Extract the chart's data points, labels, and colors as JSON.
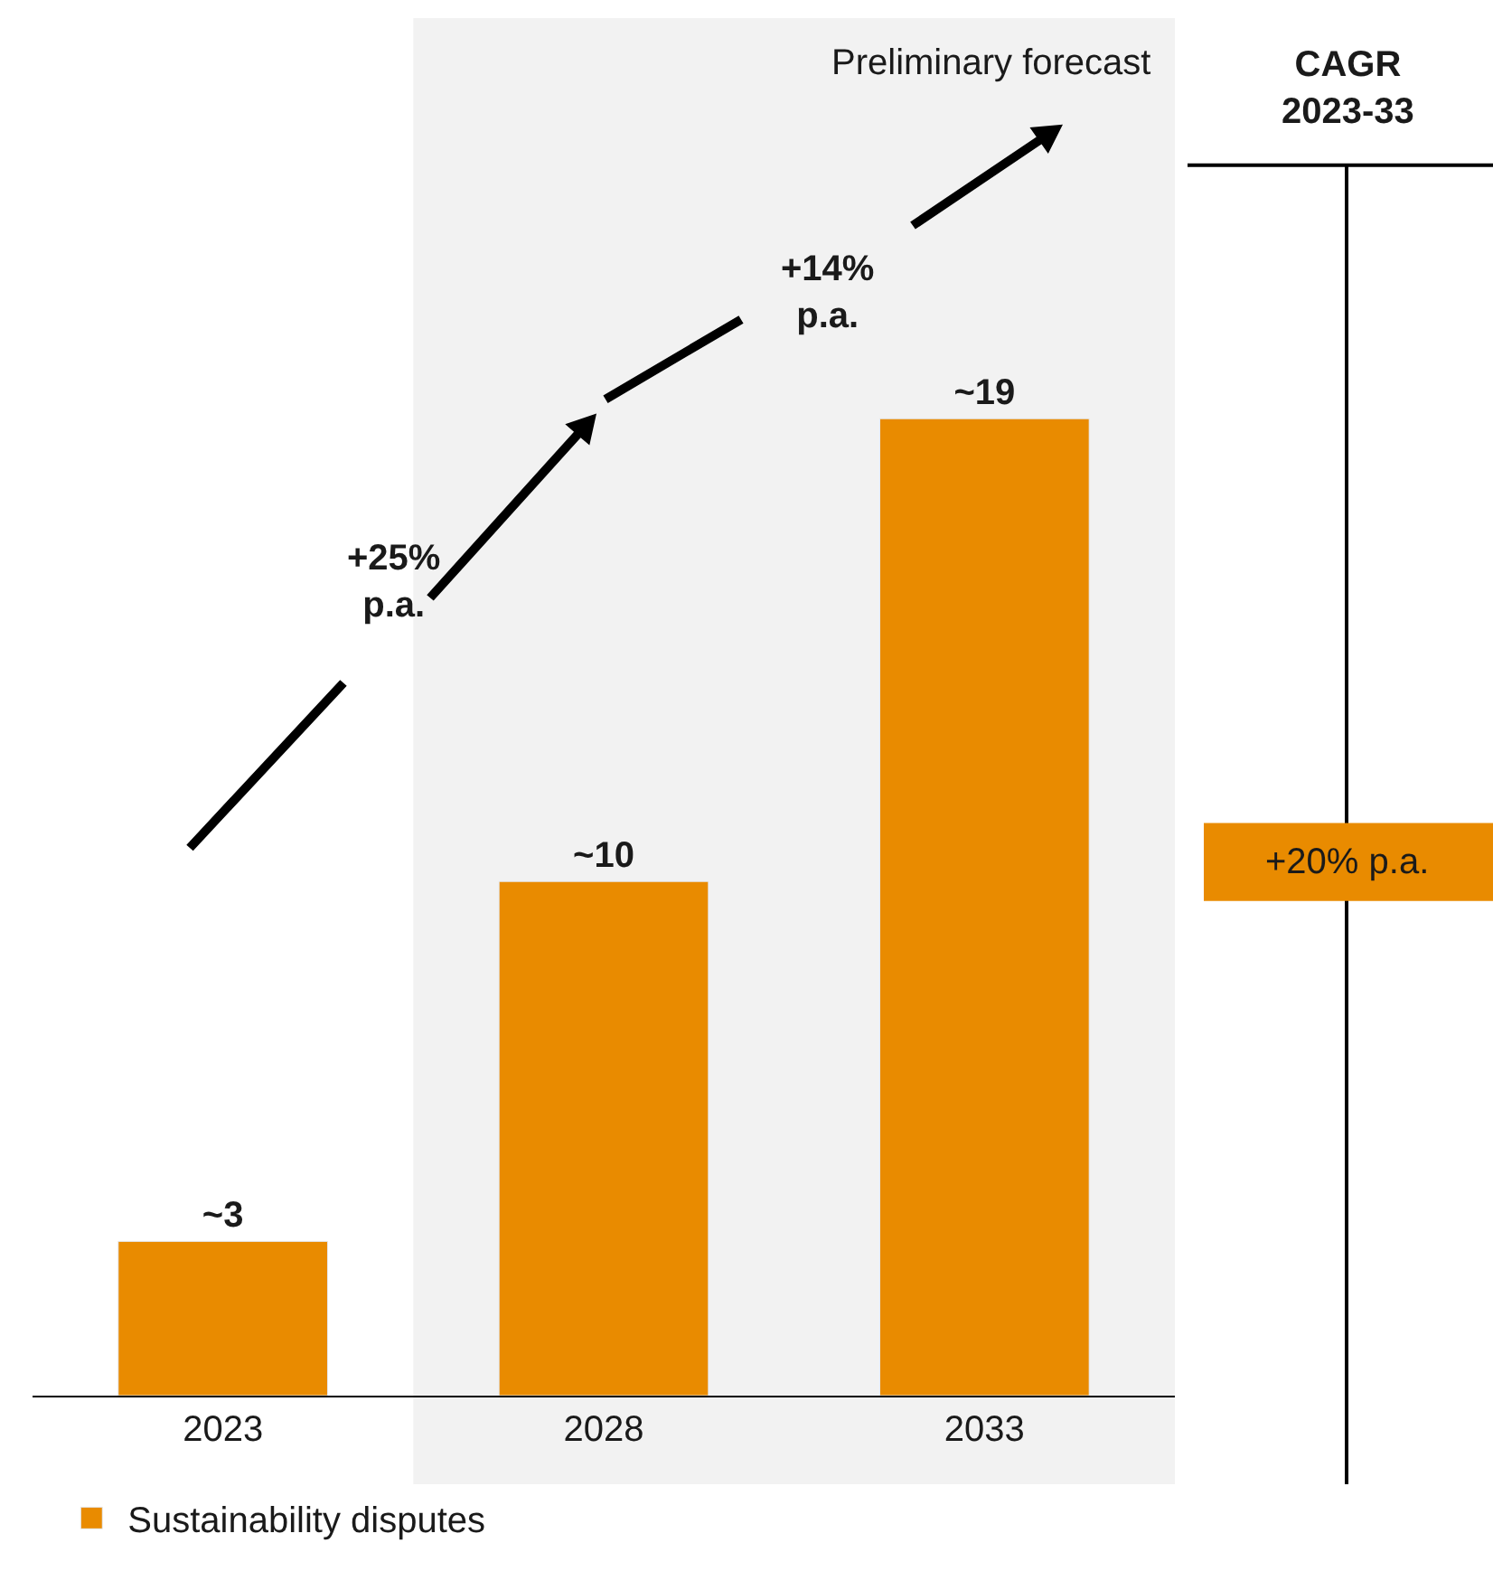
{
  "chart_data": {
    "type": "bar",
    "categories": [
      "2023",
      "2028",
      "2033"
    ],
    "series": [
      {
        "name": "Sustainability disputes",
        "color": "#e98b00",
        "values": [
          3,
          10,
          19
        ],
        "value_labels": [
          "~3",
          "~10",
          "~19"
        ]
      }
    ],
    "bands": [
      {
        "axis": "x",
        "from": "2028",
        "to": "2033",
        "label": "Preliminary forecast",
        "color": "#f2f2f2"
      }
    ],
    "annotations": [
      "+25%\np.a.",
      "+14%\np.a.",
      "CAGR\n2023-33",
      "+20% p.a."
    ],
    "legend": "bottom left",
    "grid": false
  }
}
